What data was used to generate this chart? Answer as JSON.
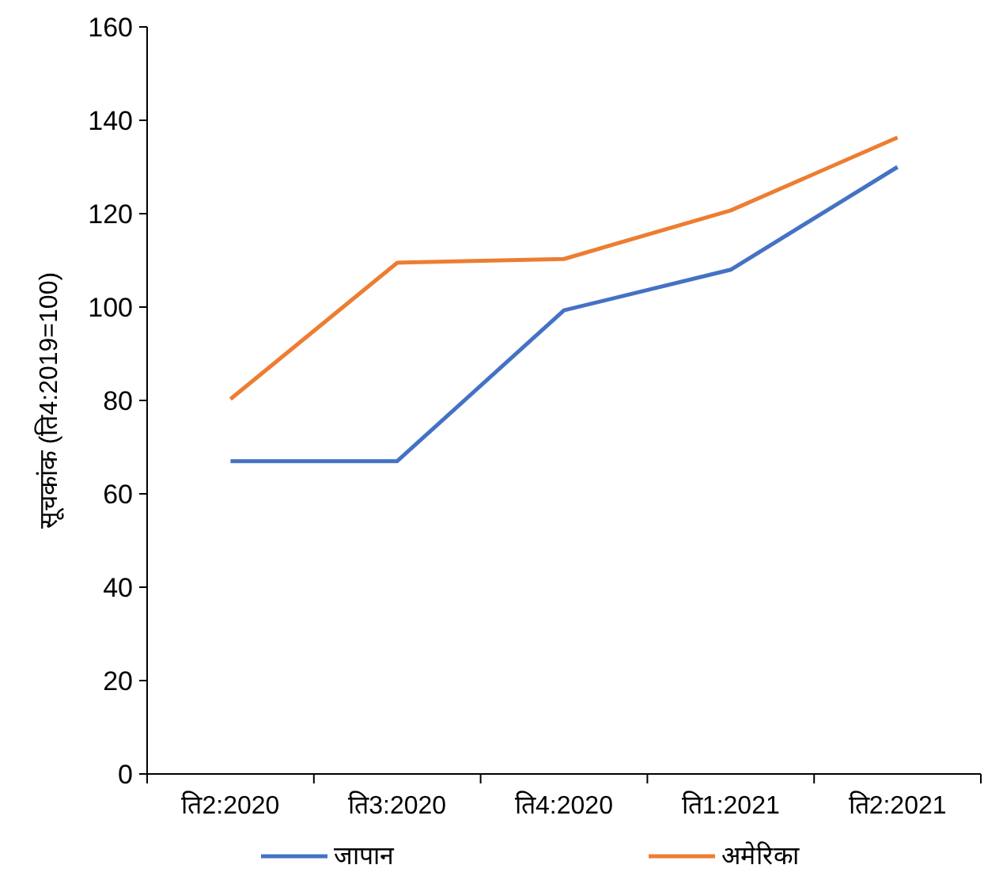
{
  "chart_data": {
    "type": "line",
    "ylabel": "सूचकांक (ति4:2019=100)",
    "categories": [
      "ति2:2020",
      "ति3:2020",
      "ति4:2020",
      "ति1:2021",
      "ति2:2021"
    ],
    "series": [
      {
        "name": "जापान",
        "color": "#4472c4",
        "values": [
          67,
          67,
          99.3,
          108,
          130
        ]
      },
      {
        "name": "अमेरिका",
        "color": "#ed7d31",
        "values": [
          80.3,
          109.5,
          110.3,
          120.7,
          136.3
        ]
      }
    ],
    "ylim": [
      0,
      160
    ],
    "yticks": [
      0,
      20,
      40,
      60,
      80,
      100,
      120,
      140,
      160
    ],
    "grid": false,
    "legend": "bottom",
    "marker": "none",
    "line_style": "solid"
  }
}
